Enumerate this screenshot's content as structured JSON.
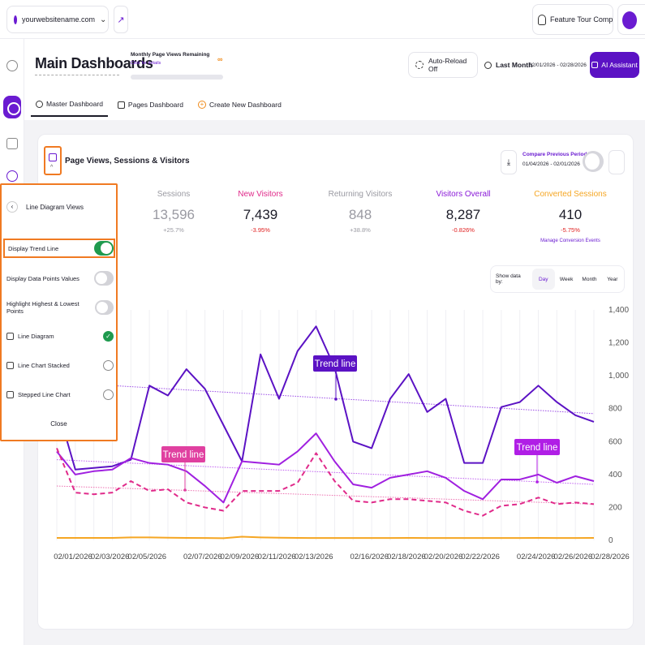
{
  "topbar": {
    "site": "yourwebsitename.com",
    "feature_tour": "Feature Tour Complet..."
  },
  "header": {
    "title": "Main Dashboards",
    "quota_label": "Monthly Page Views Remaining",
    "quota_link": "Click for details",
    "quota_value": "∞",
    "autoreload": "Auto-Reload Off",
    "period": "Last Month",
    "date_range": "02/01/2026 - 02/28/2026",
    "ai_button": "AI Assistant"
  },
  "tabs": {
    "master": "Master Dashboard",
    "pages": "Pages Dashboard",
    "create": "Create New Dashboard"
  },
  "card": {
    "title": "Page Views, Sessions & Visitors",
    "compare_label": "Compare Previous Period",
    "compare_range": "01/04/2026 - 02/01/2026"
  },
  "stats": {
    "sessions": {
      "label": "Sessions",
      "value": "13,596",
      "change": "+25.7%"
    },
    "new_visitors": {
      "label": "New Visitors",
      "value": "7,439",
      "change": "-3.95%"
    },
    "returning": {
      "label": "Returning Visitors",
      "value": "848",
      "change": "+38.8%"
    },
    "overall": {
      "label": "Visitors Overall",
      "value": "8,287",
      "change": "-0.826%"
    },
    "converted": {
      "label": "Converted Sessions",
      "value": "410",
      "change": "-5.75%",
      "link": "Manage Conversion Events"
    }
  },
  "showby": {
    "label": "Show data by:",
    "day": "Day",
    "week": "Week",
    "month": "Month",
    "year": "Year"
  },
  "panel": {
    "title": "Line Diagram Views",
    "trend": "Display Trend Line",
    "data_points": "Display Data Points Values",
    "highlight": "Highlight Highest & Lowest Points",
    "line": "Line Diagram",
    "stacked": "Line Chart Stacked",
    "stepped": "Stepped Line Chart",
    "close": "Close",
    "trend_on": true,
    "selected_view": "Line Diagram"
  },
  "colors": {
    "brand": "#6a1bd1",
    "accent_orange": "#f07a22",
    "toggle_on": "#1f9a4e"
  },
  "chart_data": {
    "type": "line",
    "ylim": [
      0,
      1400
    ],
    "yticks": [
      "0",
      "200",
      "400",
      "600",
      "800",
      "1,000",
      "1,200",
      "1,400"
    ],
    "x_tick_labels": [
      "02/01/2026",
      "02/03/2026",
      "02/05/2026",
      "02/07/2026",
      "02/09/2026",
      "02/11/2026",
      "02/13/2026",
      "02/16/2026",
      "02/18/2026",
      "02/20/2026",
      "02/22/2026",
      "02/24/2026",
      "02/26/2026",
      "02/28/2026"
    ],
    "series": [
      {
        "values": [
          820,
          430,
          440,
          450,
          490,
          940,
          880,
          1040,
          920,
          700,
          480,
          1130,
          860,
          1150,
          1300,
          1050,
          600,
          560,
          860,
          1010,
          780,
          860,
          470,
          470,
          810,
          840,
          940,
          840,
          760,
          720
        ],
        "color": "#5b12c4",
        "dash": false
      },
      {
        "values": [
          540,
          400,
          420,
          430,
          500,
          470,
          460,
          420,
          330,
          230,
          480,
          470,
          460,
          540,
          650,
          480,
          340,
          320,
          380,
          400,
          420,
          380,
          300,
          250,
          370,
          370,
          400,
          350,
          390,
          360
        ],
        "color": "#a020e0",
        "dash": false
      },
      {
        "values": [
          560,
          290,
          280,
          290,
          360,
          300,
          310,
          230,
          200,
          180,
          300,
          300,
          300,
          350,
          530,
          360,
          240,
          230,
          250,
          250,
          240,
          230,
          180,
          150,
          210,
          220,
          260,
          220,
          230,
          220
        ],
        "color": "#e02a8a",
        "dash": true
      },
      {
        "values": [
          15,
          15,
          15,
          15,
          18,
          18,
          16,
          15,
          14,
          13,
          22,
          18,
          16,
          15,
          14,
          14,
          14,
          14,
          14,
          15,
          14,
          14,
          14,
          14,
          14,
          14,
          15,
          14,
          14,
          15
        ],
        "color": "#f5a623",
        "dash": false
      }
    ],
    "trend_lines": [
      {
        "from": 960,
        "to": 770,
        "color": "#9b4be6"
      },
      {
        "from": 490,
        "to": 340,
        "color": "#c060f0"
      },
      {
        "from": 330,
        "to": 220,
        "color": "#ec70b0"
      }
    ],
    "annotations": [
      {
        "text": "Trend line",
        "color": "#5b12c4"
      },
      {
        "text": "Trend line",
        "color": "#e040a0"
      },
      {
        "text": "Trend line",
        "color": "#b01ee6"
      }
    ]
  }
}
